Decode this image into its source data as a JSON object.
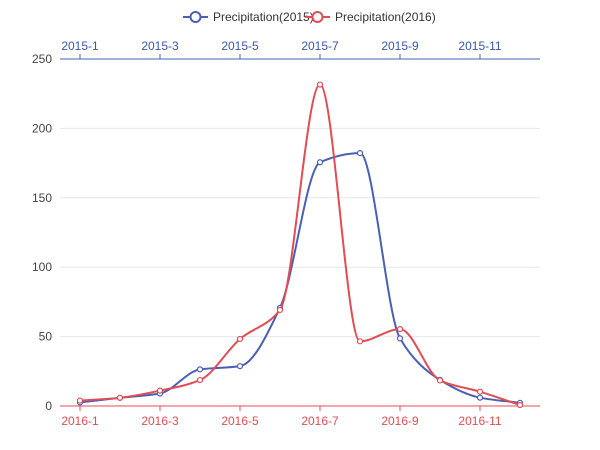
{
  "chart_data": {
    "type": "line",
    "title": "",
    "legend_position": "top-center",
    "grid": true,
    "ylim": [
      0,
      250
    ],
    "y_ticks": [
      "0",
      "50",
      "100",
      "150",
      "200",
      "250"
    ],
    "x_top": {
      "categories": [
        "2015-1",
        "2015-2",
        "2015-3",
        "2015-4",
        "2015-5",
        "2015-6",
        "2015-7",
        "2015-8",
        "2015-9",
        "2015-10",
        "2015-11",
        "2015-12"
      ],
      "tick_labels": [
        "2015-1",
        "2015-3",
        "2015-5",
        "2015-7",
        "2015-9",
        "2015-11"
      ]
    },
    "x_bottom": {
      "categories": [
        "2016-1",
        "2016-2",
        "2016-3",
        "2016-4",
        "2016-5",
        "2016-6",
        "2016-7",
        "2016-8",
        "2016-9",
        "2016-10",
        "2016-11",
        "2016-12"
      ],
      "tick_labels": [
        "2016-1",
        "2016-3",
        "2016-5",
        "2016-7",
        "2016-9",
        "2016-11"
      ]
    },
    "series": [
      {
        "name": "Precipitation(2015)",
        "color": "#4a5fb5",
        "axis": "top",
        "values": [
          2.6,
          5.9,
          9.0,
          26.4,
          28.7,
          70.7,
          175.6,
          182.2,
          48.7,
          18.8,
          6.0,
          2.3
        ]
      },
      {
        "name": "Precipitation(2016)",
        "color": "#e04d55",
        "axis": "bottom",
        "values": [
          3.9,
          5.9,
          11.1,
          18.7,
          48.3,
          69.2,
          231.6,
          46.6,
          55.4,
          18.4,
          10.3,
          0.7
        ]
      }
    ]
  }
}
